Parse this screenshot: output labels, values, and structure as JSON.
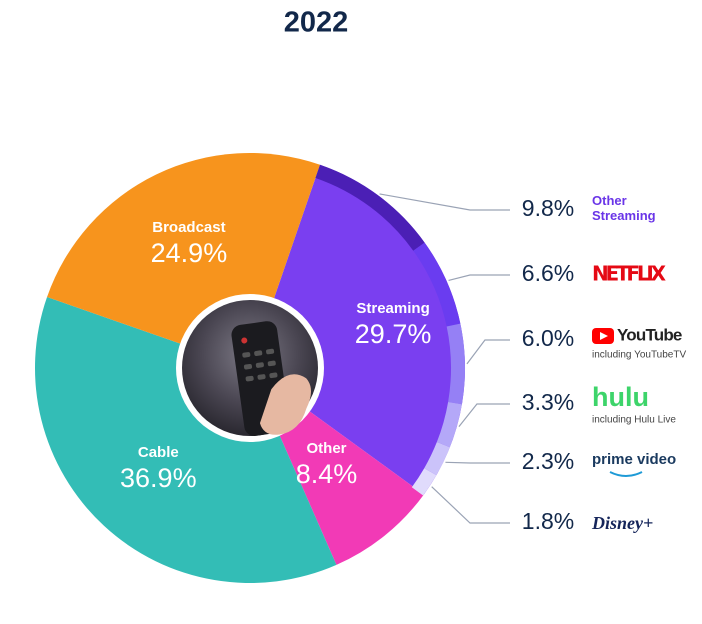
{
  "chart_data": {
    "type": "pie",
    "title": "2022",
    "categories": [
      "Streaming",
      "Other",
      "Cable",
      "Broadcast"
    ],
    "values": [
      29.7,
      8.4,
      36.9,
      24.9
    ],
    "value_labels": [
      "29.7%",
      "8.4%",
      "36.9%",
      "24.9%"
    ],
    "colors": [
      "#7a3ff0",
      "#f23ab6",
      "#33bdb6",
      "#f7941d"
    ],
    "breakdown": [
      {
        "name": "Other Streaming",
        "value": 9.8,
        "value_label": "9.8%",
        "color": "#4b1fb5"
      },
      {
        "name": "NETFLIX",
        "value": 6.6,
        "value_label": "6.6%",
        "color": "#6a3cf0"
      },
      {
        "name": "YouTube",
        "note": "including YouTubeTV",
        "value": 6.0,
        "value_label": "6.0%",
        "color": "#9580f5"
      },
      {
        "name": "hulu",
        "note": "including Hulu Live",
        "value": 3.3,
        "value_label": "3.3%",
        "color": "#b4a8f8"
      },
      {
        "name": "prime video",
        "value": 2.3,
        "value_label": "2.3%",
        "color": "#cbc3fa"
      },
      {
        "name": "Disney+",
        "value": 1.8,
        "value_label": "1.8%",
        "color": "#e0dbfc"
      }
    ]
  }
}
